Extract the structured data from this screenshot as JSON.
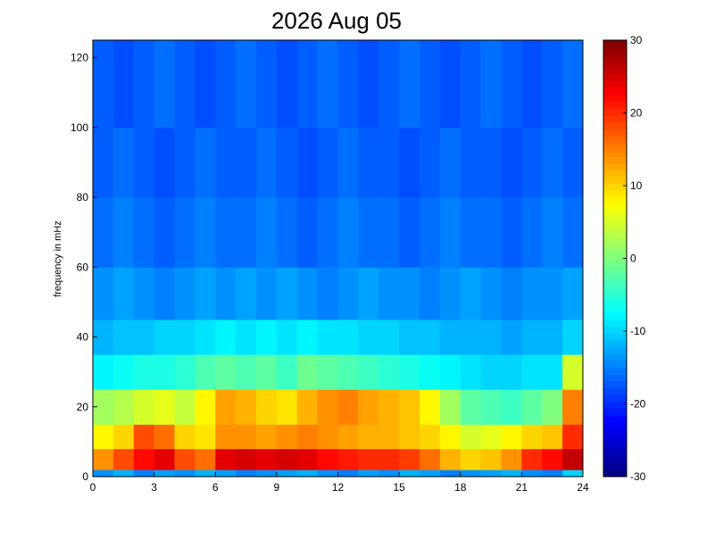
{
  "chart_data": {
    "type": "heatmap",
    "title": "2026 Aug 05",
    "y_label": "frequency in mHz",
    "x_edges": [
      0,
      1,
      2,
      3,
      4,
      5,
      6,
      7,
      8,
      9,
      10,
      11,
      12,
      13,
      14,
      15,
      16,
      17,
      18,
      19,
      20,
      21,
      22,
      23,
      24
    ],
    "y_edges": [
      0,
      2,
      8,
      15,
      25,
      35,
      45,
      60,
      80,
      100,
      125
    ],
    "z": [
      [
        -14,
        -12,
        -15,
        -13,
        -14,
        -12,
        -13,
        -15,
        -14,
        -13,
        -12,
        -14,
        -15,
        -13,
        -14,
        -12,
        -13,
        -15,
        -14,
        -13,
        -12,
        -14,
        -15,
        -10
      ],
      [
        14,
        18,
        22,
        24,
        18,
        16,
        24,
        25,
        24,
        25,
        24,
        22,
        21,
        20,
        20,
        19,
        16,
        12,
        10,
        11,
        14,
        20,
        22,
        26
      ],
      [
        8,
        10,
        18,
        16,
        10,
        9,
        14,
        14,
        13,
        14,
        15,
        14,
        13,
        12,
        12,
        11,
        10,
        8,
        5,
        6,
        8,
        10,
        11,
        20
      ],
      [
        2,
        3,
        5,
        6,
        4,
        8,
        13,
        12,
        10,
        9,
        12,
        14,
        15,
        13,
        12,
        11,
        8,
        2,
        -2,
        -3,
        -4,
        -2,
        0,
        15
      ],
      [
        -8,
        -7,
        -6,
        -6,
        -5,
        -3,
        -2,
        -3,
        -2,
        -4,
        -1,
        -2,
        -3,
        -4,
        -5,
        -6,
        -7,
        -8,
        -9,
        -10,
        -10,
        -9,
        -9,
        5
      ],
      [
        -12,
        -11,
        -11,
        -10,
        -10,
        -9,
        -8,
        -9,
        -8,
        -9,
        -8,
        -9,
        -9,
        -10,
        -10,
        -11,
        -11,
        -12,
        -12,
        -12,
        -13,
        -12,
        -12,
        -10
      ],
      [
        -14,
        -13,
        -14,
        -15,
        -14,
        -13,
        -14,
        -13,
        -14,
        -13,
        -14,
        -15,
        -14,
        -13,
        -14,
        -14,
        -15,
        -14,
        -13,
        -14,
        -15,
        -14,
        -14,
        -13
      ],
      [
        -16,
        -15,
        -16,
        -17,
        -16,
        -15,
        -16,
        -16,
        -15,
        -16,
        -17,
        -16,
        -15,
        -16,
        -16,
        -17,
        -16,
        -15,
        -16,
        -16,
        -17,
        -16,
        -15,
        -16
      ],
      [
        -17,
        -16,
        -17,
        -18,
        -17,
        -16,
        -17,
        -17,
        -16,
        -17,
        -18,
        -17,
        -16,
        -17,
        -17,
        -18,
        -17,
        -16,
        -17,
        -17,
        -18,
        -17,
        -16,
        -17
      ],
      [
        -17,
        -18,
        -17,
        -16,
        -17,
        -18,
        -17,
        -16,
        -17,
        -18,
        -17,
        -16,
        -17,
        -18,
        -17,
        -16,
        -17,
        -18,
        -17,
        -16,
        -17,
        -18,
        -17,
        -16
      ]
    ],
    "colormap": "jet",
    "clim": [
      -30,
      30
    ],
    "cticks": [
      -30,
      -20,
      -10,
      0,
      10,
      20,
      30
    ],
    "xlim": [
      0,
      24
    ],
    "xticks": [
      0,
      3,
      6,
      9,
      12,
      15,
      18,
      21,
      24
    ],
    "ylim": [
      0,
      125
    ],
    "yticks": [
      0,
      20,
      40,
      60,
      80,
      100,
      120
    ]
  }
}
